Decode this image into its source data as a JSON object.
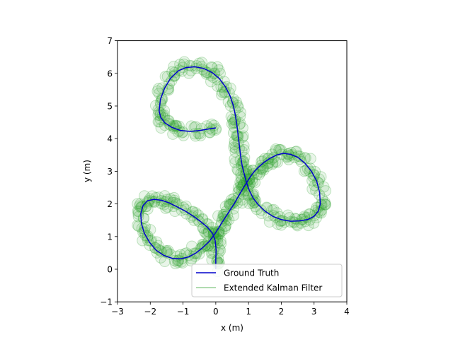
{
  "chart_data": {
    "type": "line",
    "title": "",
    "xlabel": "x (m)",
    "ylabel": "y (m)",
    "xlim": [
      -3,
      4
    ],
    "ylim": [
      -1,
      7
    ],
    "xticks": [
      -3,
      -2,
      -1,
      0,
      1,
      2,
      3,
      4
    ],
    "xtick_labels": [
      "−3",
      "−2",
      "−1",
      "0",
      "1",
      "2",
      "3",
      "4"
    ],
    "yticks": [
      -1,
      0,
      1,
      2,
      3,
      4,
      5,
      6,
      7
    ],
    "ytick_labels": [
      "−1",
      "0",
      "1",
      "2",
      "3",
      "4",
      "5",
      "6",
      "7"
    ],
    "grid": false,
    "aspect": "equal",
    "legend": {
      "position": "lower-right"
    },
    "series": [
      {
        "name": "Ground Truth",
        "style": "line",
        "color": "#0000cc",
        "x": [
          0.0,
          0.0,
          0.01,
          -0.02,
          -0.1,
          -0.25,
          -0.45,
          -0.68,
          -0.93,
          -1.18,
          -1.42,
          -1.65,
          -1.88,
          -2.08,
          -2.22,
          -2.29,
          -2.27,
          -2.18,
          -2.02,
          -1.82,
          -1.58,
          -1.32,
          -1.06,
          -0.82,
          -0.6,
          -0.4,
          -0.2,
          -0.05,
          0.08,
          0.2,
          0.32,
          0.44,
          0.56,
          0.66,
          0.76,
          0.86,
          0.96,
          1.06,
          1.18,
          1.32,
          1.48,
          1.66,
          1.86,
          2.06,
          2.28,
          2.5,
          2.72,
          2.92,
          3.08,
          3.17,
          3.19,
          3.13,
          3.0,
          2.8,
          2.55,
          2.28,
          2.0,
          1.74,
          1.5,
          1.3,
          1.14,
          1.02,
          0.93,
          0.86,
          0.8,
          0.76,
          0.73,
          0.7,
          0.67,
          0.64,
          0.6,
          0.54,
          0.44,
          0.3,
          0.1,
          -0.12,
          -0.37,
          -0.63,
          -0.9,
          -1.14,
          -1.38,
          -1.56,
          -1.69,
          -1.73,
          -1.68,
          -1.55,
          -1.35,
          -1.08,
          -0.78,
          -0.48,
          -0.2,
          0.0
        ],
        "y": [
          0.0,
          0.3,
          0.6,
          0.88,
          1.1,
          1.28,
          1.45,
          1.62,
          1.78,
          1.91,
          2.03,
          2.11,
          2.14,
          2.1,
          1.95,
          1.7,
          1.4,
          1.1,
          0.82,
          0.58,
          0.42,
          0.33,
          0.32,
          0.38,
          0.5,
          0.66,
          0.85,
          1.05,
          1.25,
          1.45,
          1.63,
          1.82,
          2.0,
          2.18,
          2.35,
          2.52,
          2.68,
          2.84,
          3.0,
          3.14,
          3.28,
          3.4,
          3.5,
          3.55,
          3.52,
          3.43,
          3.25,
          3.0,
          2.7,
          2.35,
          2.0,
          1.78,
          1.62,
          1.52,
          1.48,
          1.47,
          1.52,
          1.62,
          1.78,
          1.97,
          2.18,
          2.42,
          2.68,
          2.95,
          3.2,
          3.45,
          3.7,
          3.95,
          4.2,
          4.45,
          4.7,
          5.0,
          5.3,
          5.58,
          5.85,
          6.03,
          6.15,
          6.2,
          6.18,
          6.08,
          5.85,
          5.55,
          5.2,
          4.85,
          4.65,
          4.48,
          4.35,
          4.25,
          4.22,
          4.25,
          4.3,
          4.33
        ]
      },
      {
        "name": "Extended Kalman Filter",
        "style": "scatter",
        "color": "#2ca02c",
        "alpha": 0.3
      }
    ]
  }
}
